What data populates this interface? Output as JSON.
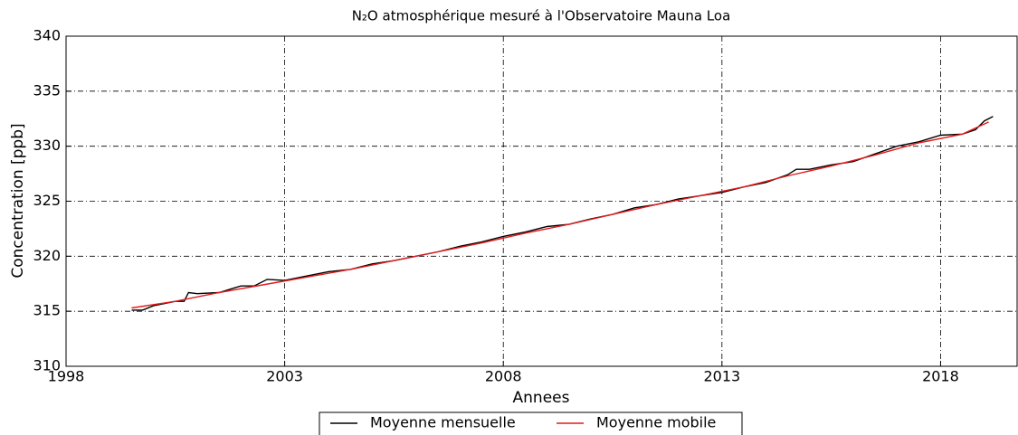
{
  "chart_data": {
    "type": "line",
    "title": "N₂O atmosphérique mesuré à l'Observatoire Mauna Loa",
    "x_label": "Annees",
    "y_label": "Concentration [ppb]",
    "xlim": [
      1998,
      2019.75
    ],
    "ylim": [
      310,
      340
    ],
    "xticks": [
      1998,
      2003,
      2008,
      2013,
      2018
    ],
    "yticks": [
      310,
      315,
      320,
      325,
      330,
      335,
      340
    ],
    "grid": true,
    "legend": "lower center",
    "series": [
      {
        "name": "Moyenne mensuelle",
        "color": "#000000",
        "x": [
          1999.5,
          1999.75,
          2000,
          2000.5,
          2000.7,
          2000.8,
          2001,
          2001.5,
          2002,
          2002.3,
          2002.6,
          2003,
          2003.5,
          2004,
          2004.5,
          2005,
          2005.5,
          2006,
          2006.5,
          2007,
          2007.5,
          2008,
          2008.5,
          2009,
          2009.5,
          2010,
          2010.5,
          2011,
          2011.5,
          2012,
          2012.5,
          2013,
          2013.5,
          2014,
          2014.5,
          2014.7,
          2015,
          2015.5,
          2016,
          2016.5,
          2017,
          2017.5,
          2018,
          2018.5,
          2018.8,
          2019,
          2019.2
        ],
        "values": [
          315.1,
          315.1,
          315.5,
          315.9,
          315.9,
          316.7,
          316.6,
          316.7,
          317.3,
          317.3,
          317.9,
          317.8,
          318.2,
          318.6,
          318.8,
          319.3,
          319.6,
          320.0,
          320.4,
          320.9,
          321.3,
          321.8,
          322.2,
          322.7,
          322.9,
          323.4,
          323.8,
          324.4,
          324.7,
          325.2,
          325.5,
          325.8,
          326.3,
          326.7,
          327.4,
          327.9,
          327.9,
          328.3,
          328.6,
          329.3,
          330.0,
          330.4,
          331.0,
          331.1,
          331.5,
          332.3,
          332.7
        ]
      },
      {
        "name": "Moyenne mobile",
        "color": "#e41a1c",
        "x": [
          1999.5,
          2000.5,
          2001.5,
          2002.5,
          2003.5,
          2004.5,
          2005.5,
          2006.5,
          2007.5,
          2008.5,
          2009.5,
          2010.5,
          2011.5,
          2012.5,
          2013.5,
          2014.5,
          2015.5,
          2016.5,
          2017.5,
          2018.5,
          2019.1
        ],
        "values": [
          315.3,
          315.9,
          316.7,
          317.4,
          318.1,
          318.8,
          319.6,
          320.4,
          321.2,
          322.1,
          322.9,
          323.8,
          324.7,
          325.5,
          326.3,
          327.3,
          328.2,
          329.2,
          330.3,
          331.1,
          332.2
        ]
      }
    ]
  }
}
